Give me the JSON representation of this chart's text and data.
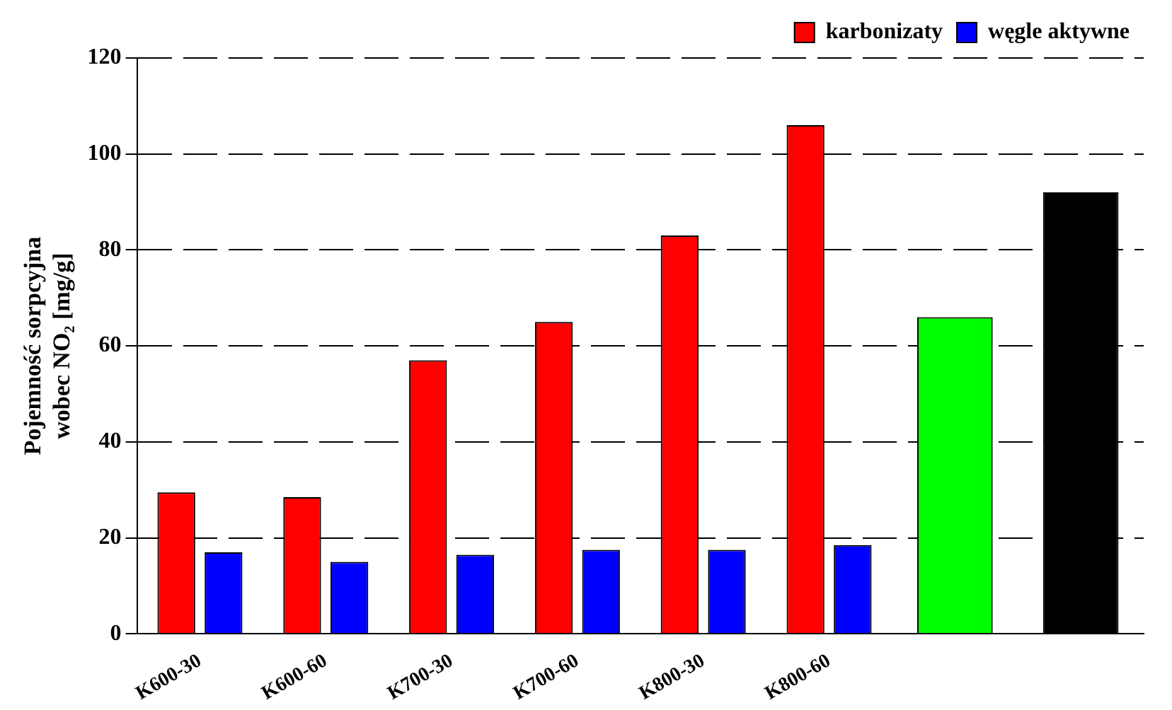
{
  "chart_data": {
    "type": "bar",
    "ylabel": "Pojemność sorpcyjna\nwobec NO₂ [mg/g]",
    "categories": [
      "K600-30",
      "K600-60",
      "K700-30",
      "K700-60",
      "K800-30",
      "K800-60",
      null,
      null
    ],
    "series": [
      {
        "name": "karbonizaty",
        "color": "#ff0000",
        "values": [
          29.5,
          28.5,
          57,
          65,
          83,
          106,
          null,
          null
        ]
      },
      {
        "name": "węgle aktywne",
        "color": "#0000ff",
        "values": [
          17,
          15,
          16.5,
          17.5,
          17.5,
          18.5,
          null,
          null
        ]
      },
      {
        "color": "#00ff00",
        "values": [
          null,
          null,
          null,
          null,
          null,
          null,
          66,
          null
        ]
      },
      {
        "color": "#000000",
        "values": [
          null,
          null,
          null,
          null,
          null,
          null,
          null,
          92
        ]
      }
    ],
    "ylim": [
      0,
      120
    ],
    "yticks": [
      0,
      20,
      40,
      60,
      80,
      100,
      120
    ],
    "grid": "y",
    "legend": "top right"
  }
}
